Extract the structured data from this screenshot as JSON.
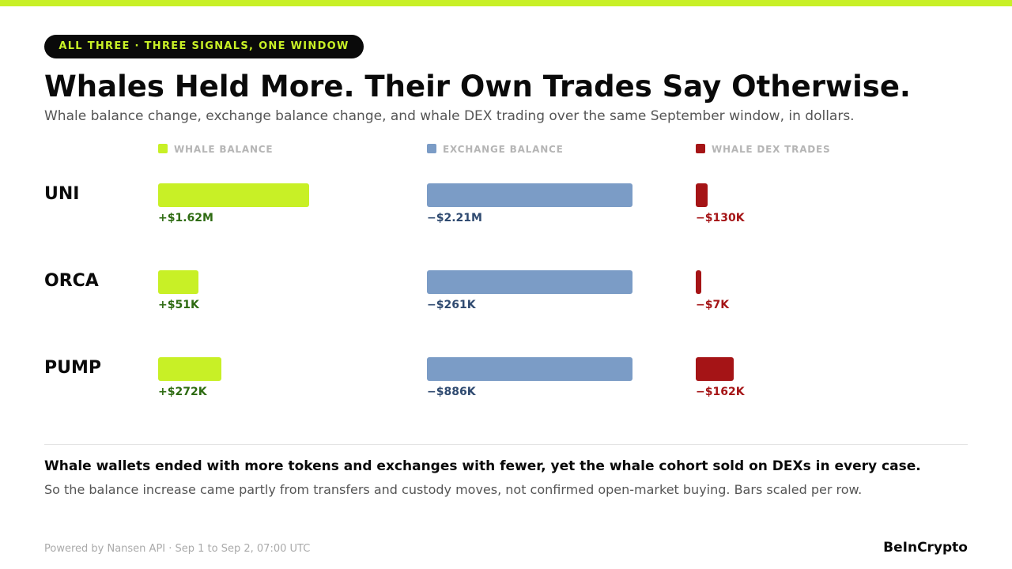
{
  "badge": "ALL THREE · THREE SIGNALS, ONE WINDOW",
  "chart_data": {
    "type": "bar",
    "title": "Whales Held More. Their Own Trades Say Otherwise.",
    "subtitle": "Whale balance change, exchange balance change, and whale DEX trading over the same September window, in dollars.",
    "categories": [
      "UNI",
      "ORCA",
      "PUMP"
    ],
    "series": [
      {
        "name": "WHALE BALANCE",
        "color": "#c8f026",
        "label_color": "#2e6b12",
        "values": [
          1620000,
          51000,
          272000
        ],
        "value_labels": [
          "+$1.62M",
          "+$51K",
          "+$272K"
        ]
      },
      {
        "name": "EXCHANGE BALANCE",
        "color": "#7b9cc6",
        "label_color": "#2f4a70",
        "values": [
          -2210000,
          -261000,
          -886000
        ],
        "value_labels": [
          "−$2.21M",
          "−$261K",
          "−$886K"
        ]
      },
      {
        "name": "WHALE DEX TRADES",
        "color": "#a51416",
        "label_color": "#a51416",
        "values": [
          -130000,
          -7000,
          -162000
        ],
        "value_labels": [
          "−$130K",
          "−$7K",
          "−$162K"
        ]
      }
    ]
  },
  "takeaway": "Whale wallets ended with more tokens and exchanges with fewer, yet the whale cohort sold on DEXs in every case.",
  "note": "So the balance increase came partly from transfers and custody moves, not confirmed open-market buying. Bars scaled per row.",
  "source": "Powered by Nansen API · Sep 1 to Sep 2, 07:00 UTC",
  "brand": "BeInCrypto"
}
